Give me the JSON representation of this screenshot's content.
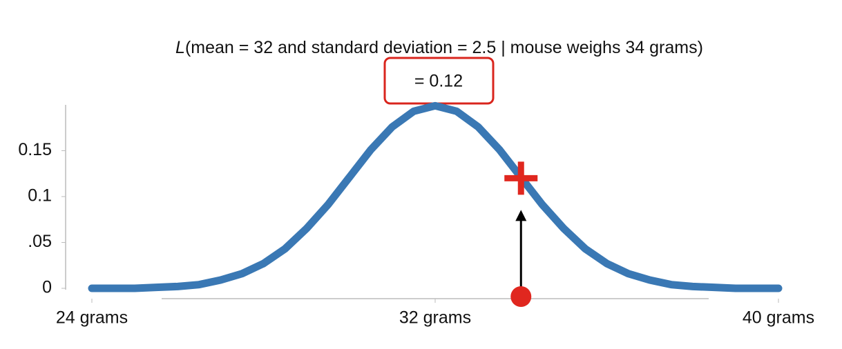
{
  "chart_data": {
    "type": "line",
    "title_function": "L",
    "title": "(mean = 32 and standard deviation = 2.5 | mouse weighs 34 grams)",
    "annotation": "= 0.12",
    "x": [
      24,
      24.5,
      25,
      25.5,
      26,
      26.5,
      27,
      27.5,
      28,
      28.5,
      29,
      29.5,
      30,
      30.5,
      31,
      31.5,
      32,
      32.5,
      33,
      33.5,
      34,
      34.5,
      35,
      35.5,
      36,
      36.5,
      37,
      37.5,
      38,
      38.5,
      39,
      39.5,
      40
    ],
    "series": [
      {
        "color": "#3a78b4",
        "values": [
          0.0,
          0.0,
          0.0,
          0.001,
          0.002,
          0.004,
          0.009,
          0.016,
          0.027,
          0.043,
          0.065,
          0.091,
          0.121,
          0.151,
          0.176,
          0.193,
          0.199,
          0.193,
          0.176,
          0.151,
          0.121,
          0.091,
          0.065,
          0.043,
          0.027,
          0.016,
          0.009,
          0.004,
          0.002,
          0.001,
          0.0,
          0.0,
          0.0
        ]
      }
    ],
    "point": {
      "x": 34,
      "y": 0.12,
      "color": "#e0271f"
    },
    "xlim": [
      24,
      40
    ],
    "xticks": [
      {
        "value": 24,
        "label": "24 grams"
      },
      {
        "value": 32,
        "label": "32 grams"
      },
      {
        "value": 40,
        "label": "40 grams"
      }
    ],
    "ylim": [
      0,
      0.2
    ],
    "yticks": [
      0,
      {
        "value": 0.05,
        "label": ".05"
      },
      0.1,
      0.15
    ]
  }
}
